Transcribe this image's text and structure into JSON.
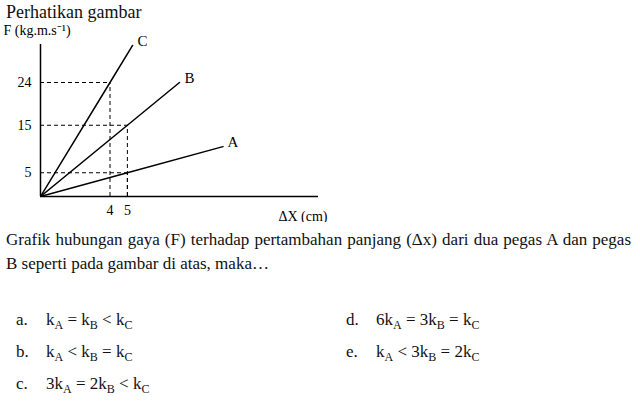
{
  "header": "Perhatikan gambar",
  "chart_data": {
    "type": "line",
    "color": "#000000",
    "y_label": "F (kg.m.s⁻¹)",
    "x_label": "ΔX (cm)",
    "xlim": [
      0,
      16
    ],
    "ylim": [
      0,
      32
    ],
    "xticks": [
      4,
      5
    ],
    "yticks": [
      5,
      15,
      24
    ],
    "series": [
      {
        "name": "C",
        "x": [
          0,
          4,
          5.3
        ],
        "values": [
          0,
          24,
          31.8
        ]
      },
      {
        "name": "B",
        "x": [
          0,
          5,
          8
        ],
        "values": [
          0,
          15,
          24
        ]
      },
      {
        "name": "A",
        "x": [
          0,
          5,
          10.5
        ],
        "values": [
          0,
          5,
          10.5
        ]
      }
    ],
    "guides": [
      {
        "x": 4,
        "y": 24
      },
      {
        "x": 5,
        "y": 15
      },
      {
        "x": 5,
        "y": 5
      }
    ]
  },
  "question": "Grafik hubungan gaya (F) terhadap pertambahan panjang (Δx) dari dua pegas A dan pegas B seperti pada gambar di atas, maka…",
  "options": [
    {
      "letter": "a.",
      "parts": [
        "k",
        {
          "sub": "A"
        },
        " = ",
        "k",
        {
          "sub": "B"
        },
        " < ",
        "k",
        {
          "sub": "C"
        }
      ]
    },
    {
      "letter": "b.",
      "parts": [
        "k",
        {
          "sub": "A"
        },
        " < ",
        "k",
        {
          "sub": "B"
        },
        " = ",
        "k",
        {
          "sub": "C"
        }
      ]
    },
    {
      "letter": "c.",
      "parts": [
        "3k",
        {
          "sub": "A"
        },
        " = ",
        "2k",
        {
          "sub": "B"
        },
        " < ",
        "k",
        {
          "sub": "C"
        }
      ]
    },
    {
      "letter": "d.",
      "parts": [
        "6k",
        {
          "sub": "A"
        },
        " = ",
        "3k",
        {
          "sub": "B"
        },
        " = ",
        "k",
        {
          "sub": "C"
        }
      ]
    },
    {
      "letter": "e.",
      "parts": [
        "k",
        {
          "sub": "A"
        },
        " < ",
        "3k",
        {
          "sub": "B"
        },
        " = ",
        "2k",
        {
          "sub": "C"
        }
      ]
    }
  ]
}
